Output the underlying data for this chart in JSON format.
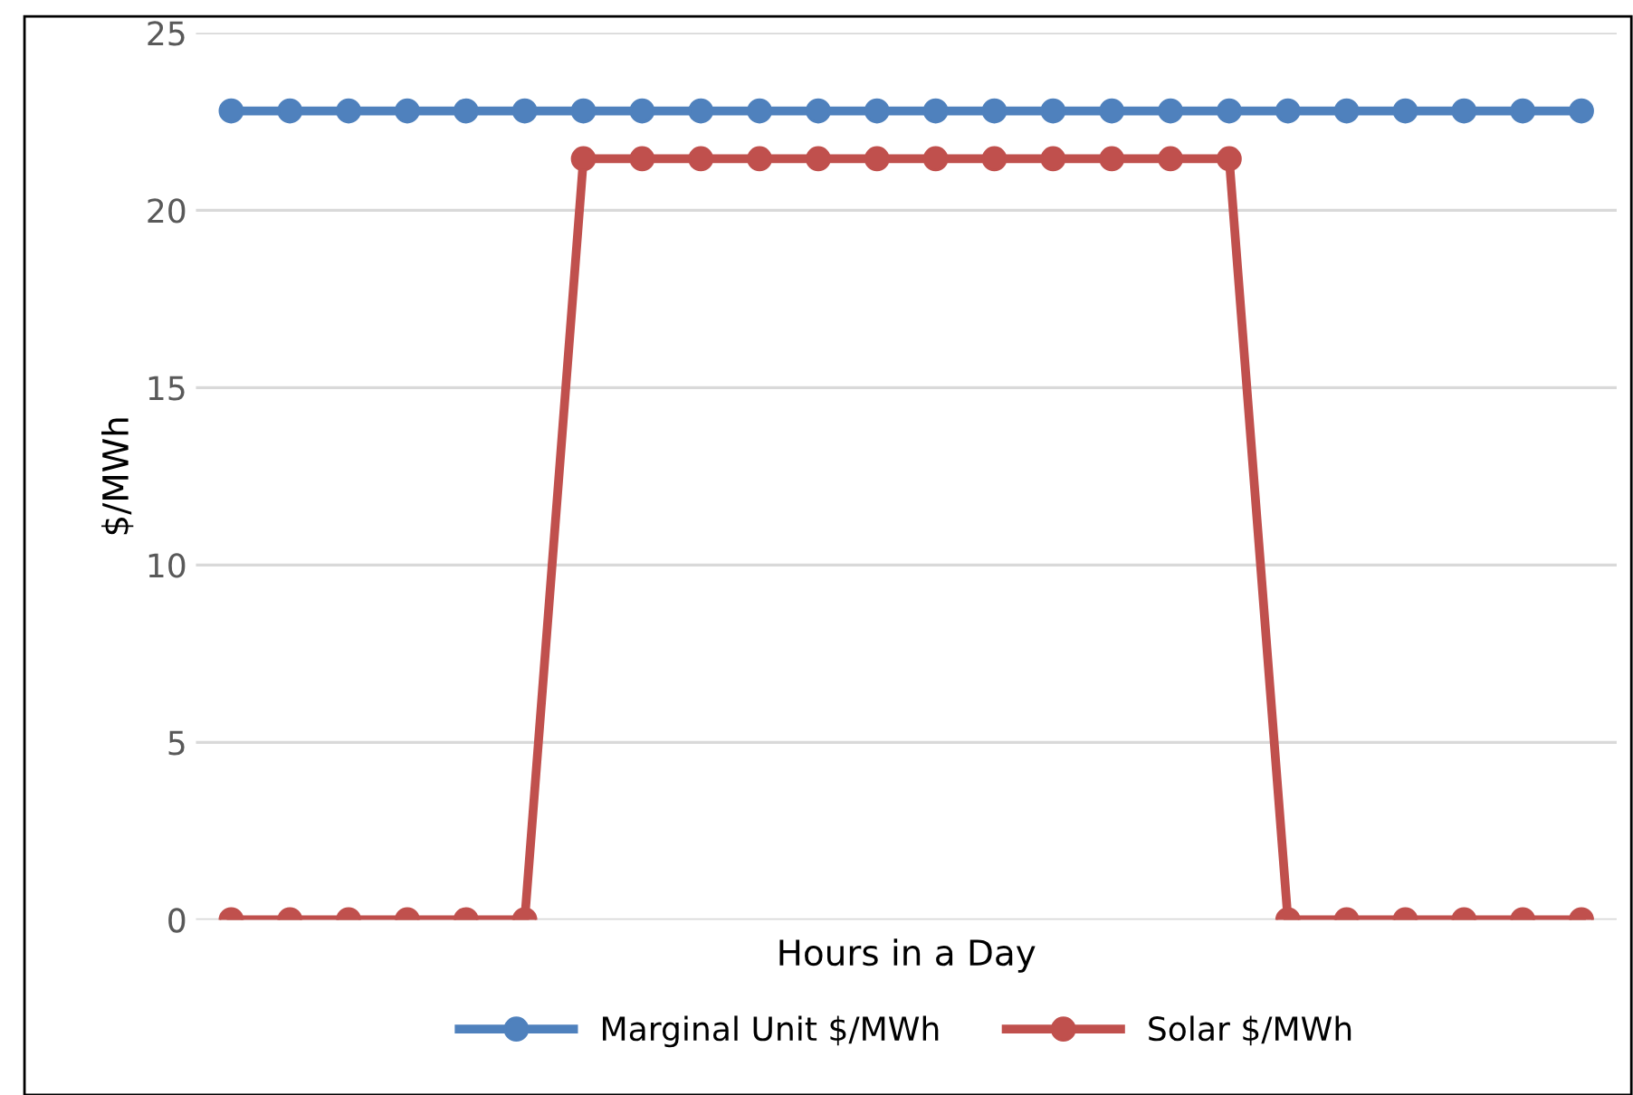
{
  "chart_data": {
    "type": "line",
    "xlabel": "Hours in a Day",
    "ylabel": "$/MWh",
    "categories": [
      null,
      null,
      null,
      null,
      null,
      null,
      null,
      null,
      null,
      null,
      null,
      null,
      null,
      null,
      null,
      null,
      null,
      null,
      null,
      null,
      null,
      null,
      null,
      null
    ],
    "series": [
      {
        "name": "Marginal Unit $/MWh",
        "color": "#4f81bd",
        "values": [
          22.8,
          22.8,
          22.8,
          22.8,
          22.8,
          22.8,
          22.8,
          22.8,
          22.8,
          22.8,
          22.8,
          22.8,
          22.8,
          22.8,
          22.8,
          22.8,
          22.8,
          22.8,
          22.8,
          22.8,
          22.8,
          22.8,
          22.8,
          22.8
        ]
      },
      {
        "name": "Solar $/MWh",
        "color": "#c0504d",
        "values": [
          0,
          0,
          0,
          0,
          0,
          0,
          21.45,
          21.45,
          21.45,
          21.45,
          21.45,
          21.45,
          21.45,
          21.45,
          21.45,
          21.45,
          21.45,
          21.45,
          0,
          0,
          0,
          0,
          0,
          0
        ]
      }
    ],
    "ylim": [
      0,
      25
    ],
    "yticks": [
      0,
      5,
      10,
      15,
      20,
      25
    ],
    "grid": "y",
    "legend": "bottom",
    "marker": "circle",
    "line_style": "solid"
  }
}
